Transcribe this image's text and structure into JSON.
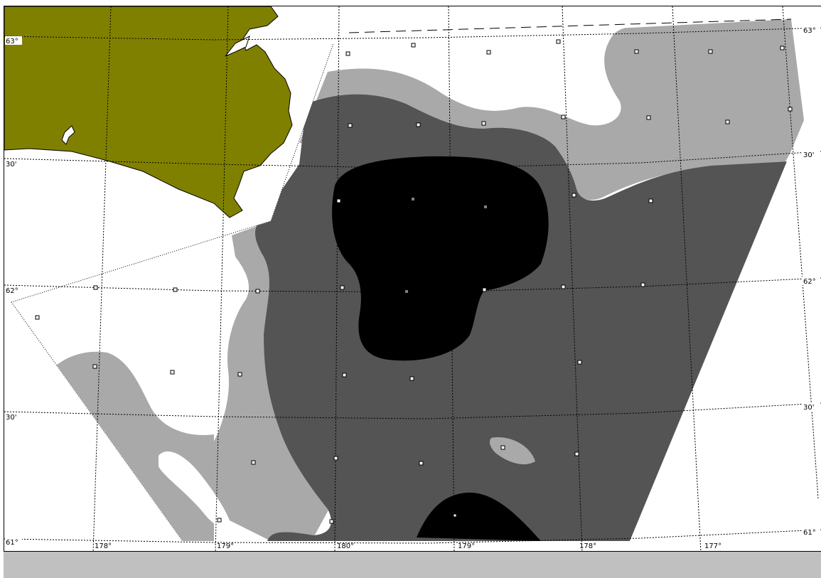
{
  "map": {
    "colors": {
      "land": "#808000",
      "water": "#ffffff",
      "level_low": "#a9a9a9",
      "level_mid": "#545454",
      "level_high": "#000000",
      "status_bar": "#c0c0c0"
    },
    "lat_labels_left": [
      "63°",
      "30'",
      "62°",
      "30'",
      "61°"
    ],
    "lat_labels_right": [
      "63°",
      "30'",
      "62°",
      "30'",
      "61°"
    ],
    "lon_labels_bottom": [
      "178°",
      "179°",
      "180°",
      "179°",
      "178°",
      "177°"
    ],
    "station_marker": "square",
    "station_count": 44
  }
}
